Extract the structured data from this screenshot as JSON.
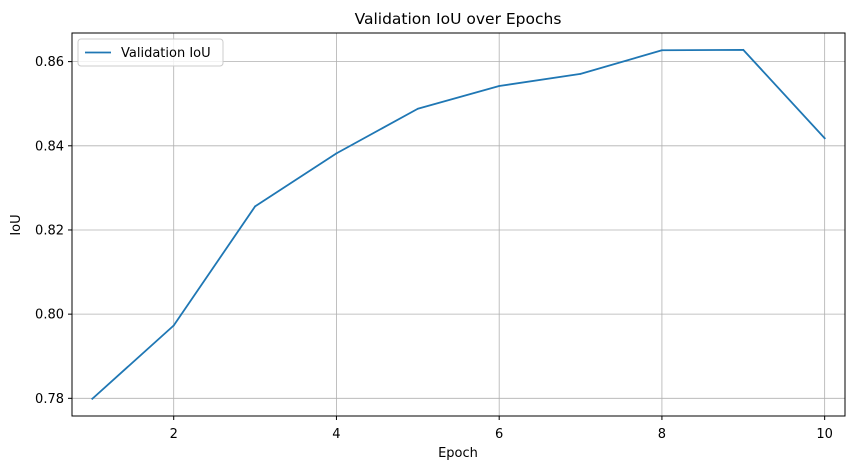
{
  "chart_data": {
    "type": "line",
    "title": "Validation IoU over Epochs",
    "xlabel": "Epoch",
    "ylabel": "IoU",
    "xlim": [
      0.75,
      10.25
    ],
    "ylim": [
      0.7758,
      0.8668
    ],
    "xticks": [
      2,
      4,
      6,
      8,
      10
    ],
    "yticks": [
      0.78,
      0.8,
      0.82,
      0.84,
      0.86
    ],
    "xtick_labels": [
      "2",
      "4",
      "6",
      "8",
      "10"
    ],
    "ytick_labels": [
      "0.78",
      "0.80",
      "0.82",
      "0.84",
      "0.86"
    ],
    "grid": true,
    "legend_position": "top-left",
    "series": [
      {
        "name": "Validation IoU",
        "color": "#1f77b4",
        "x": [
          1,
          2,
          3,
          4,
          5,
          6,
          7,
          8,
          9,
          10
        ],
        "y": [
          0.7799,
          0.7973,
          0.8256,
          0.8382,
          0.8488,
          0.8542,
          0.8571,
          0.8627,
          0.8628,
          0.8418
        ]
      }
    ]
  }
}
